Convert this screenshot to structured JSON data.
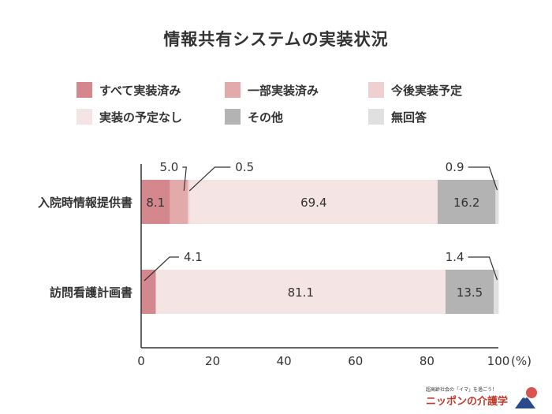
{
  "chart_data": {
    "type": "bar",
    "orientation": "horizontal",
    "stacked": true,
    "title": "情報共有システムの実装状況",
    "categories": [
      "入院時情報提供書",
      "訪問看護計画書"
    ],
    "series": [
      {
        "name": "すべて実装済み",
        "color": "#d4878c",
        "values": [
          8.1,
          4.1
        ]
      },
      {
        "name": "一部実装済み",
        "color": "#e3aaac",
        "values": [
          5.0,
          0.0
        ]
      },
      {
        "name": "今後実装予定",
        "color": "#efcfcf",
        "values": [
          0.5,
          0.0
        ]
      },
      {
        "name": "実装の予定なし",
        "color": "#f5e4e4",
        "values": [
          69.4,
          81.1
        ]
      },
      {
        "name": "その他",
        "color": "#b3b3b3",
        "values": [
          16.2,
          13.5
        ]
      },
      {
        "name": "無回答",
        "color": "#e0e0e0",
        "values": [
          0.9,
          1.4
        ]
      }
    ],
    "value_labels": [
      {
        "row": 0,
        "series": 0,
        "text": "8.1",
        "place": "inside"
      },
      {
        "row": 0,
        "series": 1,
        "text": "5.0",
        "place": "callout"
      },
      {
        "row": 0,
        "series": 2,
        "text": "0.5",
        "place": "callout"
      },
      {
        "row": 0,
        "series": 3,
        "text": "69.4",
        "place": "inside"
      },
      {
        "row": 0,
        "series": 4,
        "text": "16.2",
        "place": "inside"
      },
      {
        "row": 0,
        "series": 5,
        "text": "0.9",
        "place": "callout"
      },
      {
        "row": 1,
        "series": 0,
        "text": "4.1",
        "place": "callout"
      },
      {
        "row": 1,
        "series": 3,
        "text": "81.1",
        "place": "inside"
      },
      {
        "row": 1,
        "series": 4,
        "text": "13.5",
        "place": "inside"
      },
      {
        "row": 1,
        "series": 5,
        "text": "1.4",
        "place": "callout"
      }
    ],
    "xlim": [
      0,
      100
    ],
    "xticks": [
      "0",
      "20",
      "40",
      "60",
      "80",
      "100"
    ],
    "xunit": "(%)",
    "grid": false,
    "legend_position": "top"
  },
  "logo": {
    "tagline": "超高齢社会の「イマ」を過ごう！",
    "name": "ニッポンの介護学"
  }
}
